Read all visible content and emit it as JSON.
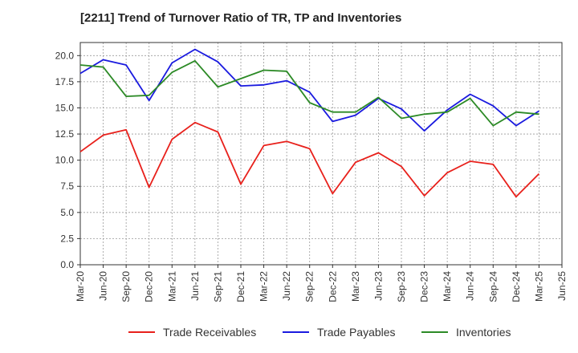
{
  "chart_data": {
    "type": "line",
    "title": "[2211]  Trend of Turnover Ratio of TR, TP and Inventories",
    "xlabel": "",
    "ylabel": "",
    "ylim": [
      0,
      21.25
    ],
    "y_ticks": [
      "0.0",
      "2.5",
      "5.0",
      "7.5",
      "10.0",
      "12.5",
      "15.0",
      "17.5",
      "20.0"
    ],
    "x": [
      "Mar-20",
      "Jun-20",
      "Sep-20",
      "Dec-20",
      "Mar-21",
      "Jun-21",
      "Sep-21",
      "Dec-21",
      "Mar-22",
      "Jun-22",
      "Sep-22",
      "Dec-22",
      "Mar-23",
      "Jun-23",
      "Sep-23",
      "Dec-23",
      "Mar-24",
      "Jun-24",
      "Sep-24",
      "Dec-24",
      "Mar-25",
      "Jun-25"
    ],
    "grid": true,
    "legend_position": "bottom",
    "series": [
      {
        "name": "Trade Receivables",
        "color": "#e8201b",
        "values": [
          10.8,
          12.4,
          12.9,
          7.4,
          12.0,
          13.6,
          12.7,
          7.7,
          11.4,
          11.8,
          11.1,
          6.8,
          9.8,
          10.7,
          9.4,
          6.6,
          8.8,
          9.9,
          9.6,
          6.5,
          8.7,
          null
        ]
      },
      {
        "name": "Trade Payables",
        "color": "#1a1adf",
        "values": [
          18.3,
          19.6,
          19.1,
          15.7,
          19.3,
          20.6,
          19.4,
          17.1,
          17.2,
          17.6,
          16.5,
          13.7,
          14.3,
          15.9,
          14.9,
          12.8,
          14.8,
          16.3,
          15.2,
          13.3,
          14.7,
          null
        ]
      },
      {
        "name": "Inventories",
        "color": "#2c8a26",
        "values": [
          19.1,
          18.9,
          16.1,
          16.2,
          18.4,
          19.5,
          17.0,
          17.8,
          18.6,
          18.5,
          15.5,
          14.6,
          14.6,
          16.0,
          14.0,
          14.4,
          14.6,
          15.9,
          13.3,
          14.6,
          14.4,
          null
        ]
      }
    ]
  }
}
